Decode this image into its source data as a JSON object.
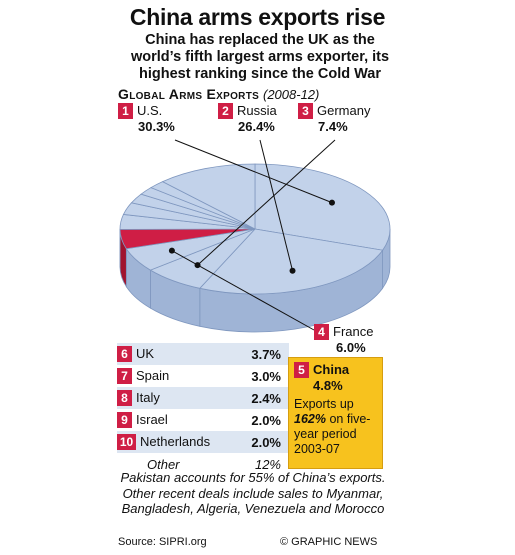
{
  "title": "China arms exports rise",
  "subtitle": "China has replaced the UK as the world’s fifth largest arms exporter, its highest ranking since the Cold War",
  "section_title": "Global Arms Exports",
  "section_years": "(2008-12)",
  "chart_data": {
    "type": "pie",
    "title": "Global Arms Exports",
    "subtitle": "(2008-12)",
    "categories": [
      "U.S.",
      "Russia",
      "Germany",
      "France",
      "China",
      "UK",
      "Spain",
      "Italy",
      "Israel",
      "Netherlands",
      "Other"
    ],
    "values": [
      30.3,
      26.4,
      7.4,
      6.0,
      4.8,
      3.7,
      3.0,
      2.4,
      2.0,
      2.0,
      12
    ],
    "ranks": [
      "1",
      "2",
      "3",
      "4",
      "5",
      "6",
      "7",
      "8",
      "9",
      "10",
      ""
    ],
    "labels": [
      "30.3%",
      "26.4%",
      "7.4%",
      "6.0%",
      "4.8%",
      "3.7%",
      "3.0%",
      "2.4%",
      "2.0%",
      "2.0%",
      "12%"
    ],
    "colors": {
      "slice": "#c2d2ea",
      "highlight": "#cf1e45",
      "accent": "#f7c21e",
      "edge": "#7f97bf"
    }
  },
  "china_note": {
    "line1": "Exports up",
    "pct": "162%",
    "line2": "on five-year period 2003-07"
  },
  "footnote": "Pakistan accounts for 55% of China’s exports. Other recent deals include sales to Myanmar, Bangladesh, Algeria, Venezuela and Morocco",
  "source": "Source: SIPRI.org",
  "credit": "© GRAPHIC NEWS",
  "watermark": "GRAPHIC NEWS"
}
